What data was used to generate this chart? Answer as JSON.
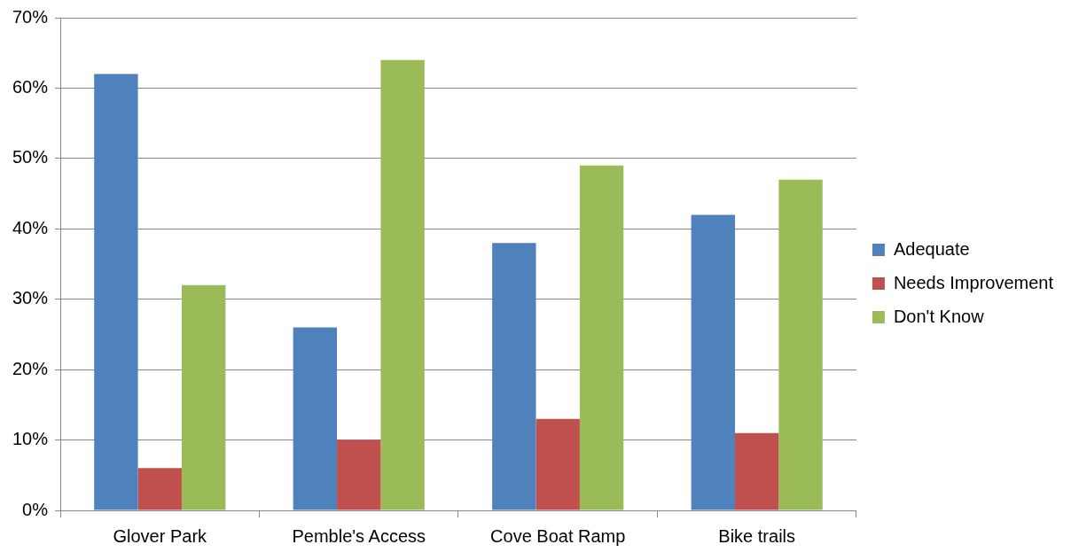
{
  "chart_data": {
    "type": "bar",
    "categories": [
      "Glover Park",
      "Pemble's Access",
      "Cove Boat Ramp",
      "Bike trails"
    ],
    "series": [
      {
        "name": "Adequate",
        "color": "#4f81bd",
        "values": [
          62,
          26,
          38,
          42
        ]
      },
      {
        "name": "Needs Improvement",
        "color": "#c0504d",
        "values": [
          6,
          10,
          13,
          11
        ]
      },
      {
        "name": "Don't Know",
        "color": "#9bbb59",
        "values": [
          32,
          64,
          49,
          47
        ]
      }
    ],
    "ylim": [
      0,
      70
    ],
    "yticks": [
      {
        "value": 0,
        "label": "0%"
      },
      {
        "value": 10,
        "label": "10%"
      },
      {
        "value": 20,
        "label": "20%"
      },
      {
        "value": 30,
        "label": "30%"
      },
      {
        "value": 40,
        "label": "40%"
      },
      {
        "value": 50,
        "label": "50%"
      },
      {
        "value": 60,
        "label": "60%"
      },
      {
        "value": 70,
        "label": "70%"
      }
    ],
    "grid": "y",
    "legend": "right"
  }
}
